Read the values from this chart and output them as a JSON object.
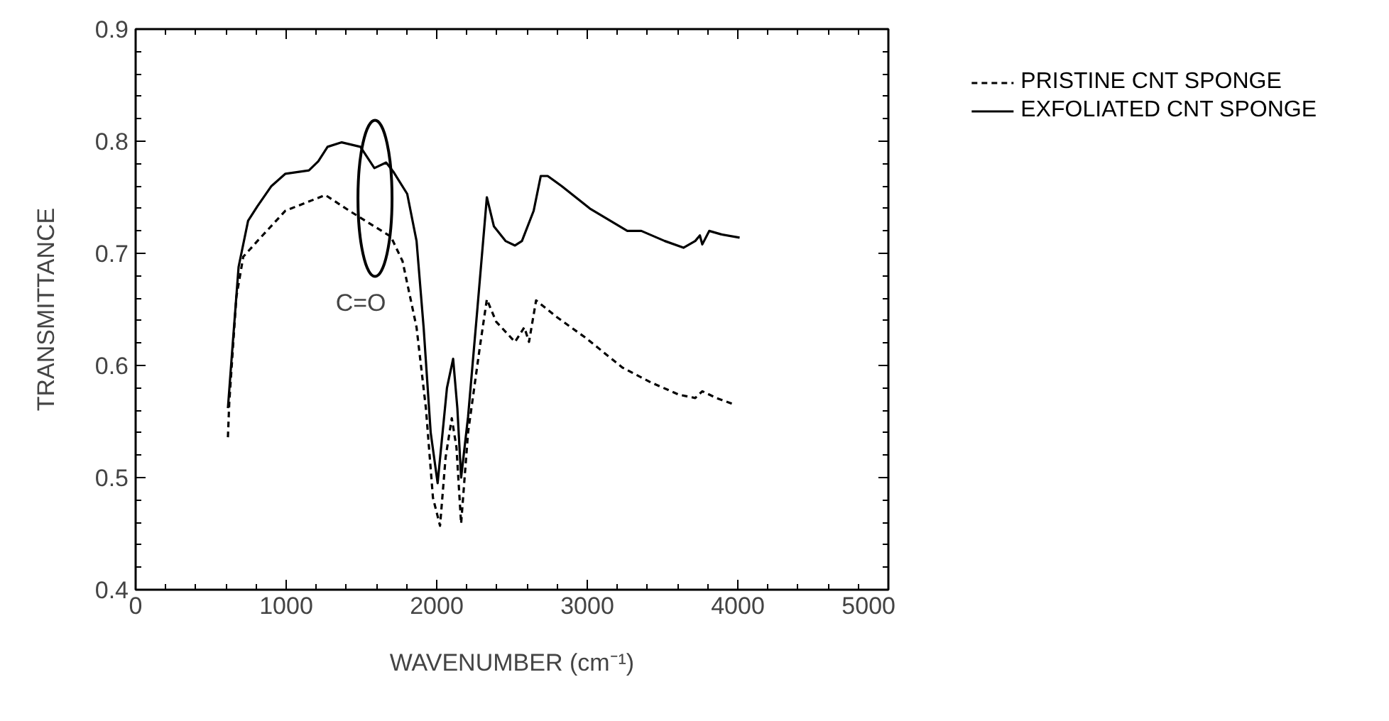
{
  "chart_data": {
    "type": "line",
    "xlabel": "WAVENUMBER (cm⁻¹)",
    "ylabel": "TRANSMITTANCE",
    "xlim": [
      0,
      5000
    ],
    "ylim": [
      0.4,
      0.9
    ],
    "xticks": [
      0,
      1000,
      2000,
      3000,
      4000,
      5000
    ],
    "yticks": [
      0.4,
      0.5,
      0.6,
      0.7,
      0.8,
      0.9
    ],
    "grid": false,
    "legend": "top right",
    "marker": "none",
    "annotations": [
      "C=O"
    ],
    "series": [
      {
        "name": "PRISTINE CNT SPONGE",
        "color": "#000000",
        "line_style": "dashed",
        "x": [
          613,
          622,
          669,
          715,
          809,
          995,
          1260,
          1431,
          1586,
          1695,
          1773,
          1866,
          1928,
          1975,
          2022,
          2059,
          2100,
          2131,
          2162,
          2208,
          2286,
          2333,
          2395,
          2520,
          2582,
          2613,
          2660,
          2799,
          2986,
          3235,
          3421,
          3608,
          3717,
          3764,
          3857,
          3981
        ],
        "values": [
          0.536,
          0.567,
          0.661,
          0.697,
          0.711,
          0.738,
          0.752,
          0.737,
          0.724,
          0.715,
          0.693,
          0.634,
          0.562,
          0.482,
          0.457,
          0.518,
          0.553,
          0.527,
          0.459,
          0.54,
          0.616,
          0.659,
          0.639,
          0.621,
          0.634,
          0.621,
          0.658,
          0.643,
          0.625,
          0.598,
          0.585,
          0.574,
          0.571,
          0.577,
          0.571,
          0.565
        ]
      },
      {
        "name": "EXFOLIATED CNT SPONGE",
        "color": "#000000",
        "line_style": "solid",
        "x": [
          613,
          638,
          684,
          747,
          809,
          902,
          995,
          1151,
          1213,
          1275,
          1369,
          1493,
          1586,
          1664,
          1711,
          1804,
          1866,
          1913,
          1960,
          2006,
          2068,
          2109,
          2137,
          2162,
          2208,
          2271,
          2333,
          2380,
          2457,
          2520,
          2566,
          2644,
          2691,
          2737,
          2830,
          3017,
          3266,
          3359,
          3515,
          3639,
          3717,
          3748,
          3764,
          3810,
          3888,
          4012
        ],
        "values": [
          0.562,
          0.607,
          0.688,
          0.729,
          0.742,
          0.76,
          0.771,
          0.774,
          0.782,
          0.795,
          0.799,
          0.795,
          0.776,
          0.781,
          0.773,
          0.753,
          0.711,
          0.634,
          0.54,
          0.495,
          0.58,
          0.606,
          0.562,
          0.5,
          0.554,
          0.652,
          0.75,
          0.724,
          0.711,
          0.707,
          0.711,
          0.738,
          0.769,
          0.769,
          0.76,
          0.74,
          0.72,
          0.72,
          0.711,
          0.705,
          0.711,
          0.716,
          0.708,
          0.72,
          0.717,
          0.714
        ]
      }
    ]
  }
}
